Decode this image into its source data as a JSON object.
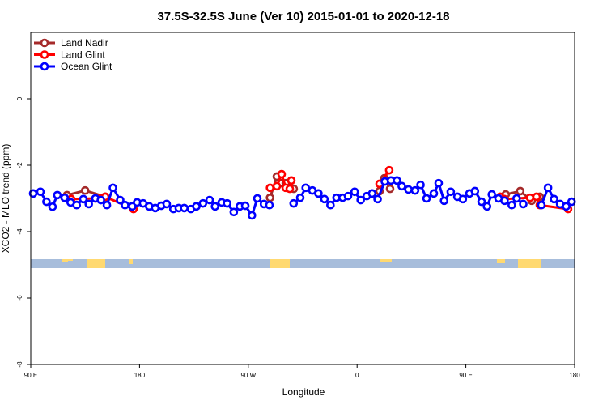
{
  "chart_data": {
    "type": "line",
    "title": "37.5S-32.5S June (Ver 10)   2015-01-01 to 2020-12-18",
    "xlabel": "Longitude",
    "ylabel": "XCO2 - MLO trend (ppm)",
    "xlim": [
      90,
      540
    ],
    "ylim": [
      -8,
      2
    ],
    "x_ticks": [
      90,
      180,
      270,
      360,
      450,
      540
    ],
    "x_tick_labels": [
      "90 E",
      "180",
      "90 W",
      "0",
      "90 E",
      "180"
    ],
    "y_ticks": [
      0,
      -2,
      -4,
      -6,
      -8
    ],
    "y_tick_labels": [
      "0",
      "-2",
      "-4",
      "-6",
      "-8"
    ],
    "grid": false,
    "legend_position": "top-left",
    "series": [
      {
        "name": "Land Nadir",
        "color": "#a52a2a",
        "x": [
          120,
          135,
          151.6,
          null,
          288,
          293.6,
          297.6,
          301,
          307.6,
          null,
          378.6,
          382.6,
          387.3,
          null,
          483,
          495,
          504.5,
          511.2
        ],
        "y": [
          -2.9,
          -2.76,
          -2.95,
          null,
          -2.98,
          -2.34,
          -2.54,
          -2.54,
          -2.71,
          null,
          -2.78,
          -2.39,
          -2.71,
          null,
          -2.88,
          -2.78,
          -3.07,
          -2.95
        ]
      },
      {
        "name": "Land Glint",
        "color": "#ff0000",
        "x": [
          118,
          123.5,
          143.6,
          148.3,
          151.6,
          175,
          null,
          288,
          293.6,
          297.6,
          301,
          304.3,
          305.6,
          null,
          378.6,
          386.6,
          null,
          478.4,
          481.7,
          503.1,
          508.5,
          511.2,
          534.6
        ],
        "y": [
          -2.98,
          -3.02,
          -3.0,
          -3.0,
          -2.95,
          -3.32,
          null,
          -2.68,
          -2.63,
          -2.27,
          -2.68,
          -2.71,
          -2.46,
          null,
          -2.56,
          -2.15,
          null,
          -2.95,
          -3.02,
          -2.98,
          -2.95,
          -3.2,
          -3.32
        ]
      },
      {
        "name": "Ocean Glint",
        "color": "#0000ff",
        "x": [
          92,
          98,
          103,
          108,
          112,
          118,
          123,
          128,
          133.5,
          138,
          143.5,
          148,
          153,
          158,
          164,
          168,
          174,
          178,
          183,
          188,
          193,
          198,
          202.5,
          208,
          212.5,
          217,
          222.5,
          227,
          232.5,
          238,
          242.5,
          248,
          252.5,
          258,
          263,
          267.5,
          273,
          277.5,
          283,
          287.5,
          null,
          307.5,
          313,
          317.5,
          323,
          328,
          333,
          338,
          343,
          348,
          352.5,
          358,
          363,
          368,
          372.5,
          377,
          383,
          388,
          393,
          397,
          402.5,
          408,
          412.5,
          417.5,
          423.5,
          427.5,
          432,
          437.5,
          443,
          447.5,
          453,
          457.5,
          463,
          467.5,
          471.5,
          477,
          482,
          488,
          492,
          497.5,
          null,
          512.5,
          518,
          523,
          528,
          533,
          537.5
        ],
        "y": [
          -2.85,
          -2.8,
          -3.1,
          -3.25,
          -2.9,
          -2.98,
          -3.12,
          -3.2,
          -3.02,
          -3.17,
          -3.0,
          -3.05,
          -3.2,
          -2.68,
          -3.05,
          -3.2,
          -3.24,
          -3.12,
          -3.15,
          -3.24,
          -3.29,
          -3.22,
          -3.17,
          -3.32,
          -3.29,
          -3.29,
          -3.32,
          -3.24,
          -3.15,
          -3.05,
          -3.24,
          -3.12,
          -3.15,
          -3.41,
          -3.24,
          -3.22,
          -3.51,
          -3.0,
          -3.17,
          -3.2,
          null,
          -3.15,
          -2.98,
          -2.68,
          -2.76,
          -2.85,
          -3.02,
          -3.2,
          -2.98,
          -2.98,
          -2.93,
          -2.8,
          -3.05,
          -2.93,
          -2.85,
          -3.02,
          -2.49,
          -2.46,
          -2.46,
          -2.63,
          -2.73,
          -2.76,
          -2.59,
          -3.0,
          -2.85,
          -2.54,
          -3.07,
          -2.8,
          -2.95,
          -3.02,
          -2.85,
          -2.78,
          -3.1,
          -3.24,
          -2.88,
          -3.0,
          -3.07,
          -3.2,
          -3.0,
          -3.17,
          null,
          -3.2,
          -2.68,
          -3.02,
          -3.17,
          -3.24,
          -3.1
        ]
      }
    ],
    "map_strip": {
      "ocean_color": "#a7bddb",
      "land_color": "#ffd970"
    }
  }
}
